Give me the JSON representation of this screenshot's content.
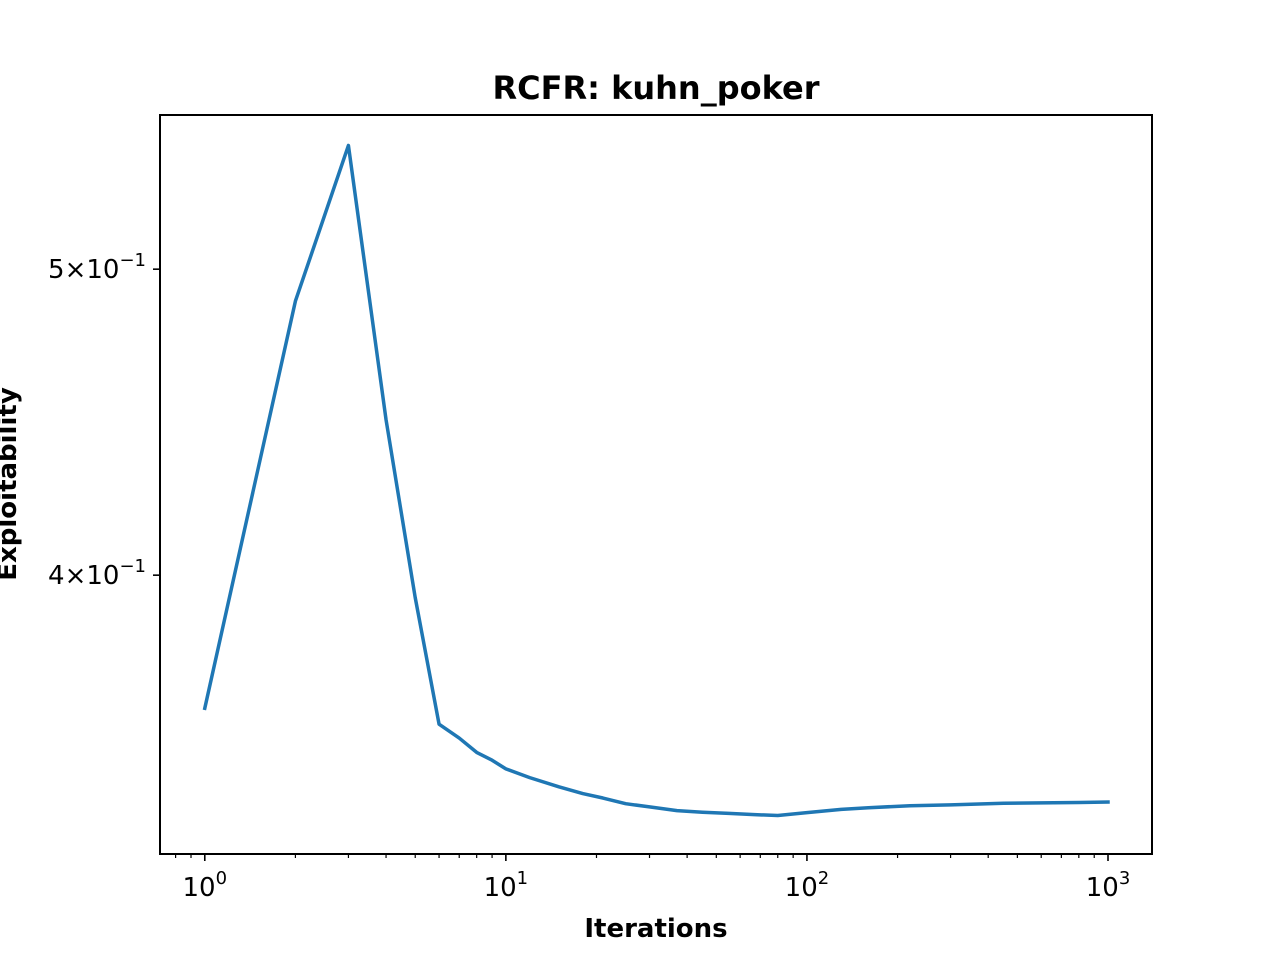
{
  "chart_data": {
    "type": "line",
    "title": "RCFR: kuhn_poker",
    "xlabel": "Iterations",
    "ylabel": "Exploitability",
    "xscale": "log",
    "yscale": "log",
    "xlim": [
      0.71,
      1400
    ],
    "ylim": [
      0.3264,
      0.5595
    ],
    "grid": false,
    "x_ticks": [
      {
        "value": 1,
        "base": "10",
        "exp": "0"
      },
      {
        "value": 10,
        "base": "10",
        "exp": "1"
      },
      {
        "value": 100,
        "base": "10",
        "exp": "2"
      },
      {
        "value": 1000,
        "base": "10",
        "exp": "3"
      }
    ],
    "y_ticks": [
      {
        "value": 0.4,
        "mantissa": "4",
        "times": "×",
        "base": "10",
        "exp": "−1"
      },
      {
        "value": 0.5,
        "mantissa": "5",
        "times": "×",
        "base": "10",
        "exp": "−1"
      }
    ],
    "series": [
      {
        "color": "#1f77b4",
        "x": [
          1,
          2,
          3,
          4,
          5,
          6,
          7,
          8,
          9,
          10,
          12,
          15,
          18,
          21,
          25,
          30,
          37,
          45,
          55,
          67,
          80,
          100,
          130,
          160,
          220,
          300,
          450,
          600,
          800,
          1000
        ],
        "y": [
          0.363,
          0.4885,
          0.5472,
          0.448,
          0.3935,
          0.3588,
          0.3552,
          0.3515,
          0.3495,
          0.3473,
          0.3451,
          0.3428,
          0.3411,
          0.34,
          0.3386,
          0.3378,
          0.3369,
          0.3365,
          0.3362,
          0.3359,
          0.3357,
          0.3364,
          0.3372,
          0.3376,
          0.3381,
          0.3383,
          0.3387,
          0.3388,
          0.3389,
          0.339
        ]
      }
    ]
  }
}
